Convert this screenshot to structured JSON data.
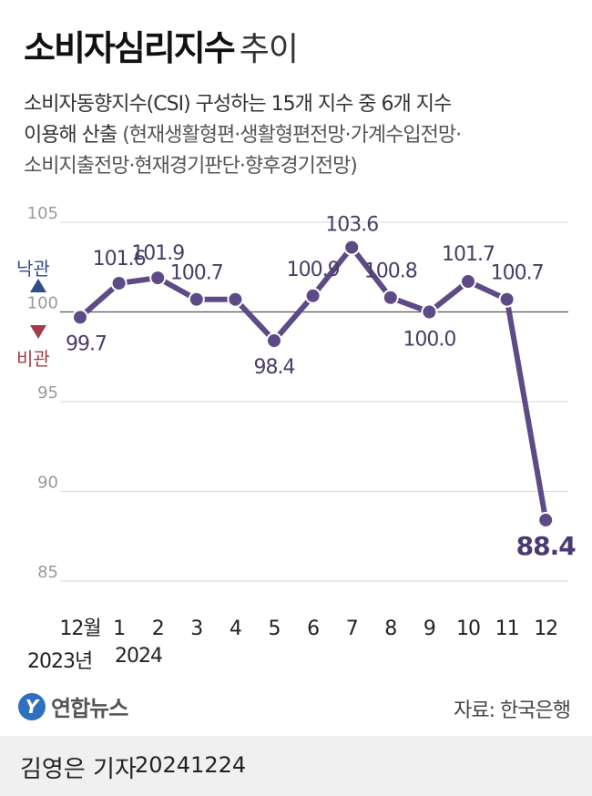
{
  "header": {
    "title": "소비자심리지수",
    "title_suffix": "추이",
    "subtitle_line1": "소비자동향지수(CSI) 구성하는 15개 지수 중 6개 지수",
    "subtitle_line2a": "이용해 산출",
    "subtitle_line2b": "(현재생활형편·생활형편전망·가계수입전망·",
    "subtitle_line3": "소비지출전망·현재경기판단·향후경기전망)"
  },
  "legend": {
    "up_label": "낙관",
    "down_label": "비관",
    "up_color": "#2f4d86",
    "down_color": "#a33d4a"
  },
  "years": {
    "start": "2023년",
    "end": "2024"
  },
  "chart_data": {
    "type": "line",
    "categories": [
      "12월",
      "1",
      "2",
      "3",
      "4",
      "5",
      "6",
      "7",
      "8",
      "9",
      "10",
      "11",
      "12"
    ],
    "values": [
      99.7,
      101.6,
      101.9,
      100.7,
      100.7,
      98.4,
      100.9,
      103.6,
      100.8,
      100.0,
      101.7,
      100.7,
      88.4
    ],
    "value_labels": [
      "99.7",
      "101.6",
      "101.9",
      "100.7",
      "",
      "98.4",
      "100.9",
      "103.6",
      "100.8",
      "100.0",
      "101.7",
      "100.7",
      "88.4"
    ],
    "yticks": [
      "105",
      "100",
      "95",
      "90",
      "85"
    ],
    "ylim": [
      85,
      105
    ],
    "reference_value": 100,
    "line_color": "#5e4a86",
    "highlight_color": "#4a3a70"
  },
  "footer": {
    "logo_mark": "Y",
    "logo_text": "연합뉴스",
    "source": "자료: 한국은행",
    "reporter": "김영은 기자",
    "date": "20241224"
  }
}
